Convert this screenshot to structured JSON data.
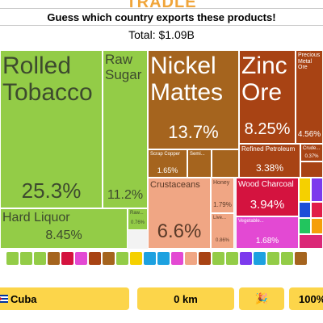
{
  "logo": "TRADLE",
  "prompt": "Guess which country exports these products!",
  "total": "Total: $1.09B",
  "treemap": [
    {
      "label": "Rolled Tobacco",
      "share": "25.3%"
    },
    {
      "label": "Raw Sugar",
      "share": "11.2%"
    },
    {
      "label": "Hard Liquor",
      "share": "8.45%"
    },
    {
      "label": "Raw...",
      "share": "0.76%"
    },
    {
      "label": "Nickel Mattes",
      "share": "13.7%"
    },
    {
      "label": "Scrap Copper",
      "share": "1.65%"
    },
    {
      "label": "Semi...",
      "share": null
    },
    {
      "label": "Zinc Ore",
      "share": "8.25%"
    },
    {
      "label": "Precious Metal Ore",
      "share": "4.56%"
    },
    {
      "label": "Refined Petroleum",
      "share": "3.38%"
    },
    {
      "label": "Crude...",
      "share": "0.37%"
    },
    {
      "label": "Crustaceans",
      "share": "6.6%"
    },
    {
      "label": "Honey",
      "share": "1.79%"
    },
    {
      "label": "Live...",
      "share": "0.86%"
    },
    {
      "label": "Wood Charcoal",
      "share": "3.94%"
    },
    {
      "label": "Vegetable...",
      "share": "1.68%"
    }
  ],
  "guess": {
    "country": "Cuba",
    "distance": "0 km",
    "emoji": "🎉",
    "proximity": "100%"
  }
}
